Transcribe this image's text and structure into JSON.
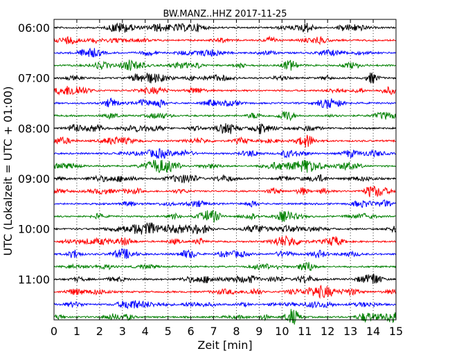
{
  "chart_data": {
    "type": "line",
    "title": "BW.MANZ..HHZ 2017-11-25",
    "xlabel": "Zeit  [min]",
    "ylabel": "UTC (Lokalzeit = UTC + 01:00)",
    "xlim": [
      0,
      15
    ],
    "x_ticks": [
      "0",
      "1",
      "2",
      "3",
      "4",
      "5",
      "6",
      "7",
      "8",
      "9",
      "10",
      "11",
      "12",
      "13",
      "14",
      "15"
    ],
    "y_ticks": [
      {
        "label": "06:00",
        "row": 0
      },
      {
        "label": "07:00",
        "row": 4
      },
      {
        "label": "08:00",
        "row": 8
      },
      {
        "label": "09:00",
        "row": 12
      },
      {
        "label": "10:00",
        "row": 16
      },
      {
        "label": "11:00",
        "row": 20
      }
    ],
    "rows_per_hour": 4,
    "row_count": 24,
    "trace_colors": [
      "#000000",
      "#ff0000",
      "#0000ff",
      "#008000"
    ],
    "grid": "vertical dotted",
    "legend": "none"
  }
}
